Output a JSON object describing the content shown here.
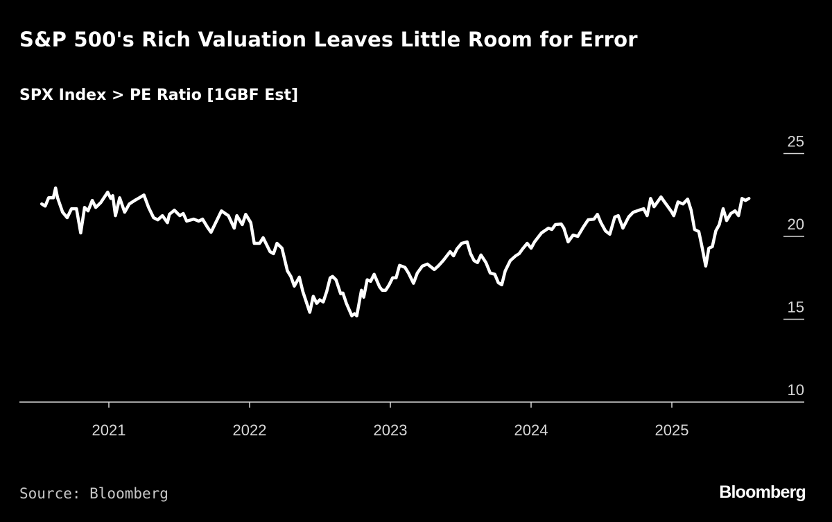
{
  "header": {
    "title": "S&P 500's Rich Valuation Leaves Little Room for Error",
    "subtitle": "SPX Index > PE Ratio [1GBF Est]"
  },
  "footer": {
    "source": "Source: Bloomberg",
    "logo": "Bloomberg"
  },
  "colors": {
    "background": "#000000",
    "line": "#ffffff",
    "axis": "#d8d8d8"
  },
  "chart_data": {
    "type": "line",
    "title": "S&P 500's Rich Valuation Leaves Little Room for Error",
    "subtitle": "SPX Index > PE Ratio [1GBF Est]",
    "xlabel": "",
    "ylabel": "",
    "ylim": [
      10,
      25
    ],
    "yticks": [
      "10",
      "15",
      "20",
      "25"
    ],
    "xticks": [
      "2021",
      "2022",
      "2023",
      "2024",
      "2025"
    ],
    "y_axis_position": "right",
    "grid": false,
    "series": [
      {
        "points": [
          [
            "2020-07-10",
            21.96
          ],
          [
            "2020-07-19",
            21.83
          ],
          [
            "2020-07-28",
            22.33
          ],
          [
            "2020-08-09",
            22.33
          ],
          [
            "2020-08-15",
            22.92
          ],
          [
            "2020-08-20",
            22.33
          ],
          [
            "2020-09-02",
            21.46
          ],
          [
            "2020-09-14",
            21.13
          ],
          [
            "2020-09-25",
            21.67
          ],
          [
            "2020-10-08",
            21.67
          ],
          [
            "2020-10-19",
            20.21
          ],
          [
            "2020-10-29",
            21.75
          ],
          [
            "2020-11-07",
            21.54
          ],
          [
            "2020-11-18",
            22.17
          ],
          [
            "2020-11-27",
            21.75
          ],
          [
            "2020-12-10",
            22.04
          ],
          [
            "2020-12-28",
            22.67
          ],
          [
            "2021-01-06",
            22.29
          ],
          [
            "2021-01-11",
            22.46
          ],
          [
            "2021-01-18",
            21.25
          ],
          [
            "2021-01-29",
            22.33
          ],
          [
            "2021-02-11",
            21.46
          ],
          [
            "2021-02-23",
            21.96
          ],
          [
            "2021-03-09",
            22.17
          ],
          [
            "2021-03-18",
            22.29
          ],
          [
            "2021-04-02",
            22.5
          ],
          [
            "2021-04-14",
            21.75
          ],
          [
            "2021-04-27",
            21.13
          ],
          [
            "2021-05-08",
            21.0
          ],
          [
            "2021-05-20",
            21.25
          ],
          [
            "2021-06-02",
            20.83
          ],
          [
            "2021-06-07",
            21.33
          ],
          [
            "2021-06-20",
            21.58
          ],
          [
            "2021-07-04",
            21.25
          ],
          [
            "2021-07-13",
            21.38
          ],
          [
            "2021-07-22",
            20.92
          ],
          [
            "2021-08-09",
            21.04
          ],
          [
            "2021-08-22",
            20.92
          ],
          [
            "2021-09-01",
            21.04
          ],
          [
            "2021-09-14",
            20.54
          ],
          [
            "2021-09-23",
            20.25
          ],
          [
            "2021-10-20",
            21.54
          ],
          [
            "2021-11-07",
            21.25
          ],
          [
            "2021-11-22",
            20.5
          ],
          [
            "2021-11-29",
            21.25
          ],
          [
            "2021-12-13",
            20.71
          ],
          [
            "2021-12-22",
            21.33
          ],
          [
            "2022-01-04",
            20.83
          ],
          [
            "2022-01-13",
            19.58
          ],
          [
            "2022-01-27",
            19.58
          ],
          [
            "2022-02-05",
            19.92
          ],
          [
            "2022-02-23",
            19.08
          ],
          [
            "2022-03-04",
            18.96
          ],
          [
            "2022-03-13",
            19.58
          ],
          [
            "2022-03-26",
            19.29
          ],
          [
            "2022-04-09",
            17.92
          ],
          [
            "2022-04-18",
            17.58
          ],
          [
            "2022-04-27",
            17.0
          ],
          [
            "2022-05-10",
            17.54
          ],
          [
            "2022-05-19",
            16.67
          ],
          [
            "2022-06-06",
            15.42
          ],
          [
            "2022-06-15",
            16.38
          ],
          [
            "2022-06-24",
            15.96
          ],
          [
            "2022-07-02",
            16.17
          ],
          [
            "2022-07-11",
            16.04
          ],
          [
            "2022-07-20",
            16.67
          ],
          [
            "2022-07-29",
            17.5
          ],
          [
            "2022-08-04",
            17.58
          ],
          [
            "2022-08-13",
            17.38
          ],
          [
            "2022-08-25",
            16.54
          ],
          [
            "2022-08-31",
            16.58
          ],
          [
            "2022-09-09",
            15.96
          ],
          [
            "2022-09-23",
            15.21
          ],
          [
            "2022-09-30",
            15.33
          ],
          [
            "2022-10-06",
            15.21
          ],
          [
            "2022-10-18",
            16.75
          ],
          [
            "2022-10-24",
            16.33
          ],
          [
            "2022-11-02",
            17.38
          ],
          [
            "2022-11-11",
            17.29
          ],
          [
            "2022-11-20",
            17.71
          ],
          [
            "2022-12-04",
            16.96
          ],
          [
            "2022-12-11",
            16.75
          ],
          [
            "2022-12-20",
            16.75
          ],
          [
            "2022-12-29",
            17.08
          ],
          [
            "2023-01-07",
            17.5
          ],
          [
            "2023-01-16",
            17.5
          ],
          [
            "2023-01-25",
            18.25
          ],
          [
            "2023-02-08",
            18.13
          ],
          [
            "2023-02-17",
            17.79
          ],
          [
            "2023-03-02",
            17.17
          ],
          [
            "2023-03-12",
            17.79
          ],
          [
            "2023-03-25",
            18.21
          ],
          [
            "2023-04-07",
            18.33
          ],
          [
            "2023-04-25",
            18.0
          ],
          [
            "2023-05-05",
            18.21
          ],
          [
            "2023-05-18",
            18.54
          ],
          [
            "2023-06-05",
            19.08
          ],
          [
            "2023-06-14",
            18.83
          ],
          [
            "2023-06-23",
            19.25
          ],
          [
            "2023-07-05",
            19.58
          ],
          [
            "2023-07-19",
            19.67
          ],
          [
            "2023-07-28",
            18.96
          ],
          [
            "2023-08-06",
            18.54
          ],
          [
            "2023-08-15",
            18.42
          ],
          [
            "2023-08-24",
            18.88
          ],
          [
            "2023-09-06",
            18.42
          ],
          [
            "2023-09-17",
            17.79
          ],
          [
            "2023-09-29",
            17.71
          ],
          [
            "2023-10-08",
            17.21
          ],
          [
            "2023-10-17",
            17.08
          ],
          [
            "2023-10-26",
            17.92
          ],
          [
            "2023-11-08",
            18.54
          ],
          [
            "2023-11-22",
            18.83
          ],
          [
            "2023-12-01",
            18.96
          ],
          [
            "2023-12-10",
            19.25
          ],
          [
            "2023-12-22",
            19.58
          ],
          [
            "2024-01-01",
            19.29
          ],
          [
            "2024-01-10",
            19.67
          ],
          [
            "2024-01-28",
            20.21
          ],
          [
            "2024-02-15",
            20.5
          ],
          [
            "2024-02-24",
            20.42
          ],
          [
            "2024-03-04",
            20.71
          ],
          [
            "2024-03-19",
            20.75
          ],
          [
            "2024-03-26",
            20.5
          ],
          [
            "2024-04-06",
            19.67
          ],
          [
            "2024-04-19",
            20.08
          ],
          [
            "2024-05-01",
            20.0
          ],
          [
            "2024-05-16",
            20.58
          ],
          [
            "2024-05-28",
            21.0
          ],
          [
            "2024-06-12",
            21.04
          ],
          [
            "2024-06-21",
            21.33
          ],
          [
            "2024-06-30",
            20.83
          ],
          [
            "2024-07-12",
            20.33
          ],
          [
            "2024-07-23",
            20.13
          ],
          [
            "2024-08-05",
            21.17
          ],
          [
            "2024-08-14",
            21.25
          ],
          [
            "2024-08-26",
            20.5
          ],
          [
            "2024-09-10",
            21.17
          ],
          [
            "2024-09-22",
            21.46
          ],
          [
            "2024-10-07",
            21.58
          ],
          [
            "2024-10-19",
            21.67
          ],
          [
            "2024-10-28",
            21.25
          ],
          [
            "2024-11-06",
            22.29
          ],
          [
            "2024-11-15",
            21.79
          ],
          [
            "2024-12-03",
            22.38
          ],
          [
            "2024-12-12",
            22.08
          ],
          [
            "2024-12-21",
            21.79
          ],
          [
            "2025-01-01",
            21.46
          ],
          [
            "2025-01-06",
            21.25
          ],
          [
            "2025-01-17",
            22.08
          ],
          [
            "2025-01-30",
            21.96
          ],
          [
            "2025-02-11",
            22.25
          ],
          [
            "2025-02-20",
            21.58
          ],
          [
            "2025-03-01",
            20.42
          ],
          [
            "2025-03-12",
            20.29
          ],
          [
            "2025-03-21",
            19.29
          ],
          [
            "2025-03-30",
            18.21
          ],
          [
            "2025-04-07",
            19.29
          ],
          [
            "2025-04-16",
            19.38
          ],
          [
            "2025-04-25",
            20.33
          ],
          [
            "2025-05-04",
            20.71
          ],
          [
            "2025-05-14",
            21.67
          ],
          [
            "2025-05-23",
            20.96
          ],
          [
            "2025-06-03",
            21.38
          ],
          [
            "2025-06-14",
            21.54
          ],
          [
            "2025-06-23",
            21.25
          ],
          [
            "2025-07-02",
            22.29
          ],
          [
            "2025-07-11",
            22.17
          ],
          [
            "2025-07-20",
            22.29
          ]
        ]
      }
    ]
  }
}
